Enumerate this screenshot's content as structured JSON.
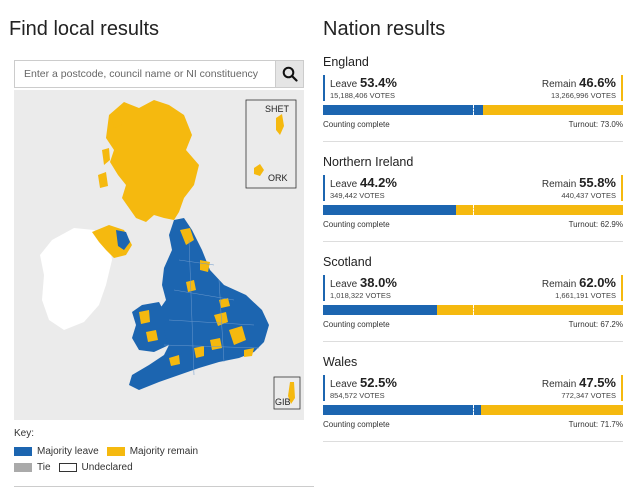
{
  "local": {
    "title": "Find local results",
    "search": {
      "placeholder": "Enter a postcode, council name or NI constituency"
    },
    "map": {
      "inset_labels": [
        "SHET",
        "ORK",
        "GIB"
      ],
      "colors": {
        "leave": "#1c65b0",
        "remain": "#f5b90f",
        "tie": "#aaaaaa",
        "ireland": "#ffffff"
      }
    },
    "key": {
      "title": "Key:",
      "items": [
        {
          "label": "Majority leave",
          "color": "#1c65b0"
        },
        {
          "label": "Majority remain",
          "color": "#f5b90f"
        },
        {
          "label": "Tie",
          "color": "#aaaaaa"
        },
        {
          "label": "Undeclared",
          "color": "#ffffff"
        }
      ]
    }
  },
  "nation": {
    "title": "Nation results",
    "leave_label": "Leave",
    "remain_label": "Remain",
    "regions": [
      {
        "name": "England",
        "leave_pct": "53.4%",
        "leave_votes": "15,188,406 VOTES",
        "remain_pct": "46.6%",
        "remain_votes": "13,266,996 VOTES",
        "leave_share": 0.534,
        "status": "Counting complete",
        "turnout": "Turnout: 73.0%"
      },
      {
        "name": "Northern Ireland",
        "leave_pct": "44.2%",
        "leave_votes": "349,442 VOTES",
        "remain_pct": "55.8%",
        "remain_votes": "440,437 VOTES",
        "leave_share": 0.442,
        "status": "Counting complete",
        "turnout": "Turnout: 62.9%"
      },
      {
        "name": "Scotland",
        "leave_pct": "38.0%",
        "leave_votes": "1,018,322 VOTES",
        "remain_pct": "62.0%",
        "remain_votes": "1,661,191 VOTES",
        "leave_share": 0.38,
        "status": "Counting complete",
        "turnout": "Turnout: 67.2%"
      },
      {
        "name": "Wales",
        "leave_pct": "52.5%",
        "leave_votes": "854,572 VOTES",
        "remain_pct": "47.5%",
        "remain_votes": "772,347 VOTES",
        "leave_share": 0.525,
        "status": "Counting complete",
        "turnout": "Turnout: 71.7%"
      }
    ]
  }
}
